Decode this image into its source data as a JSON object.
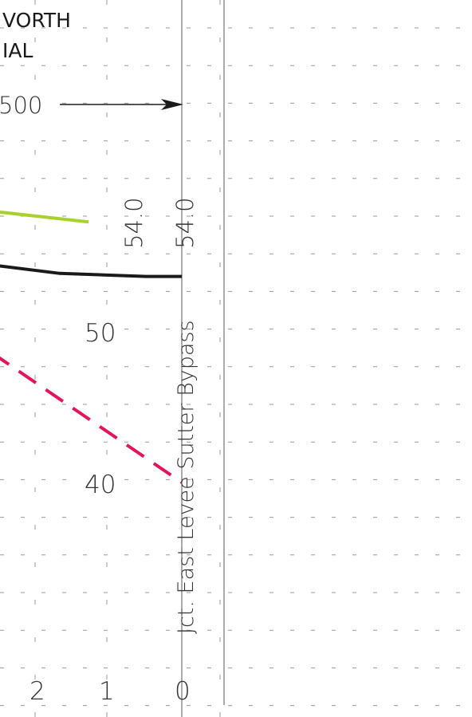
{
  "chart_data": {
    "type": "line",
    "title_lines": [
      "VORTH",
      "IAL"
    ],
    "flow_label": "500",
    "x_ticks": [
      "2",
      "1",
      "0"
    ],
    "y_ticks": [
      "50",
      "40"
    ],
    "grid": true,
    "series": [
      {
        "color": "#a8d12c",
        "dash": "none",
        "points": [
          [
            3.4,
            58.3
          ],
          [
            1.3,
            57.2
          ]
        ]
      },
      {
        "color": "#1a1a1a",
        "dash": "none",
        "points": [
          [
            3.4,
            54.8
          ],
          [
            1.7,
            53.8
          ],
          [
            0.5,
            53.6
          ],
          [
            0.0,
            53.6
          ]
        ]
      },
      {
        "color": "#e3145e",
        "dash": "dash",
        "points": [
          [
            3.4,
            51.0
          ],
          [
            0.0,
            40.0
          ]
        ]
      }
    ],
    "annotations": [
      {
        "id": "ann-54a",
        "text": "54.0"
      },
      {
        "id": "ann-54b",
        "text": "54.0"
      },
      {
        "id": "ann-junction",
        "text": "Jct. East Levee Sutter Bypass"
      }
    ]
  },
  "colors": {
    "grid": "#9a9a9a",
    "axis": "#444444",
    "arrow": "#1a1a1a"
  }
}
